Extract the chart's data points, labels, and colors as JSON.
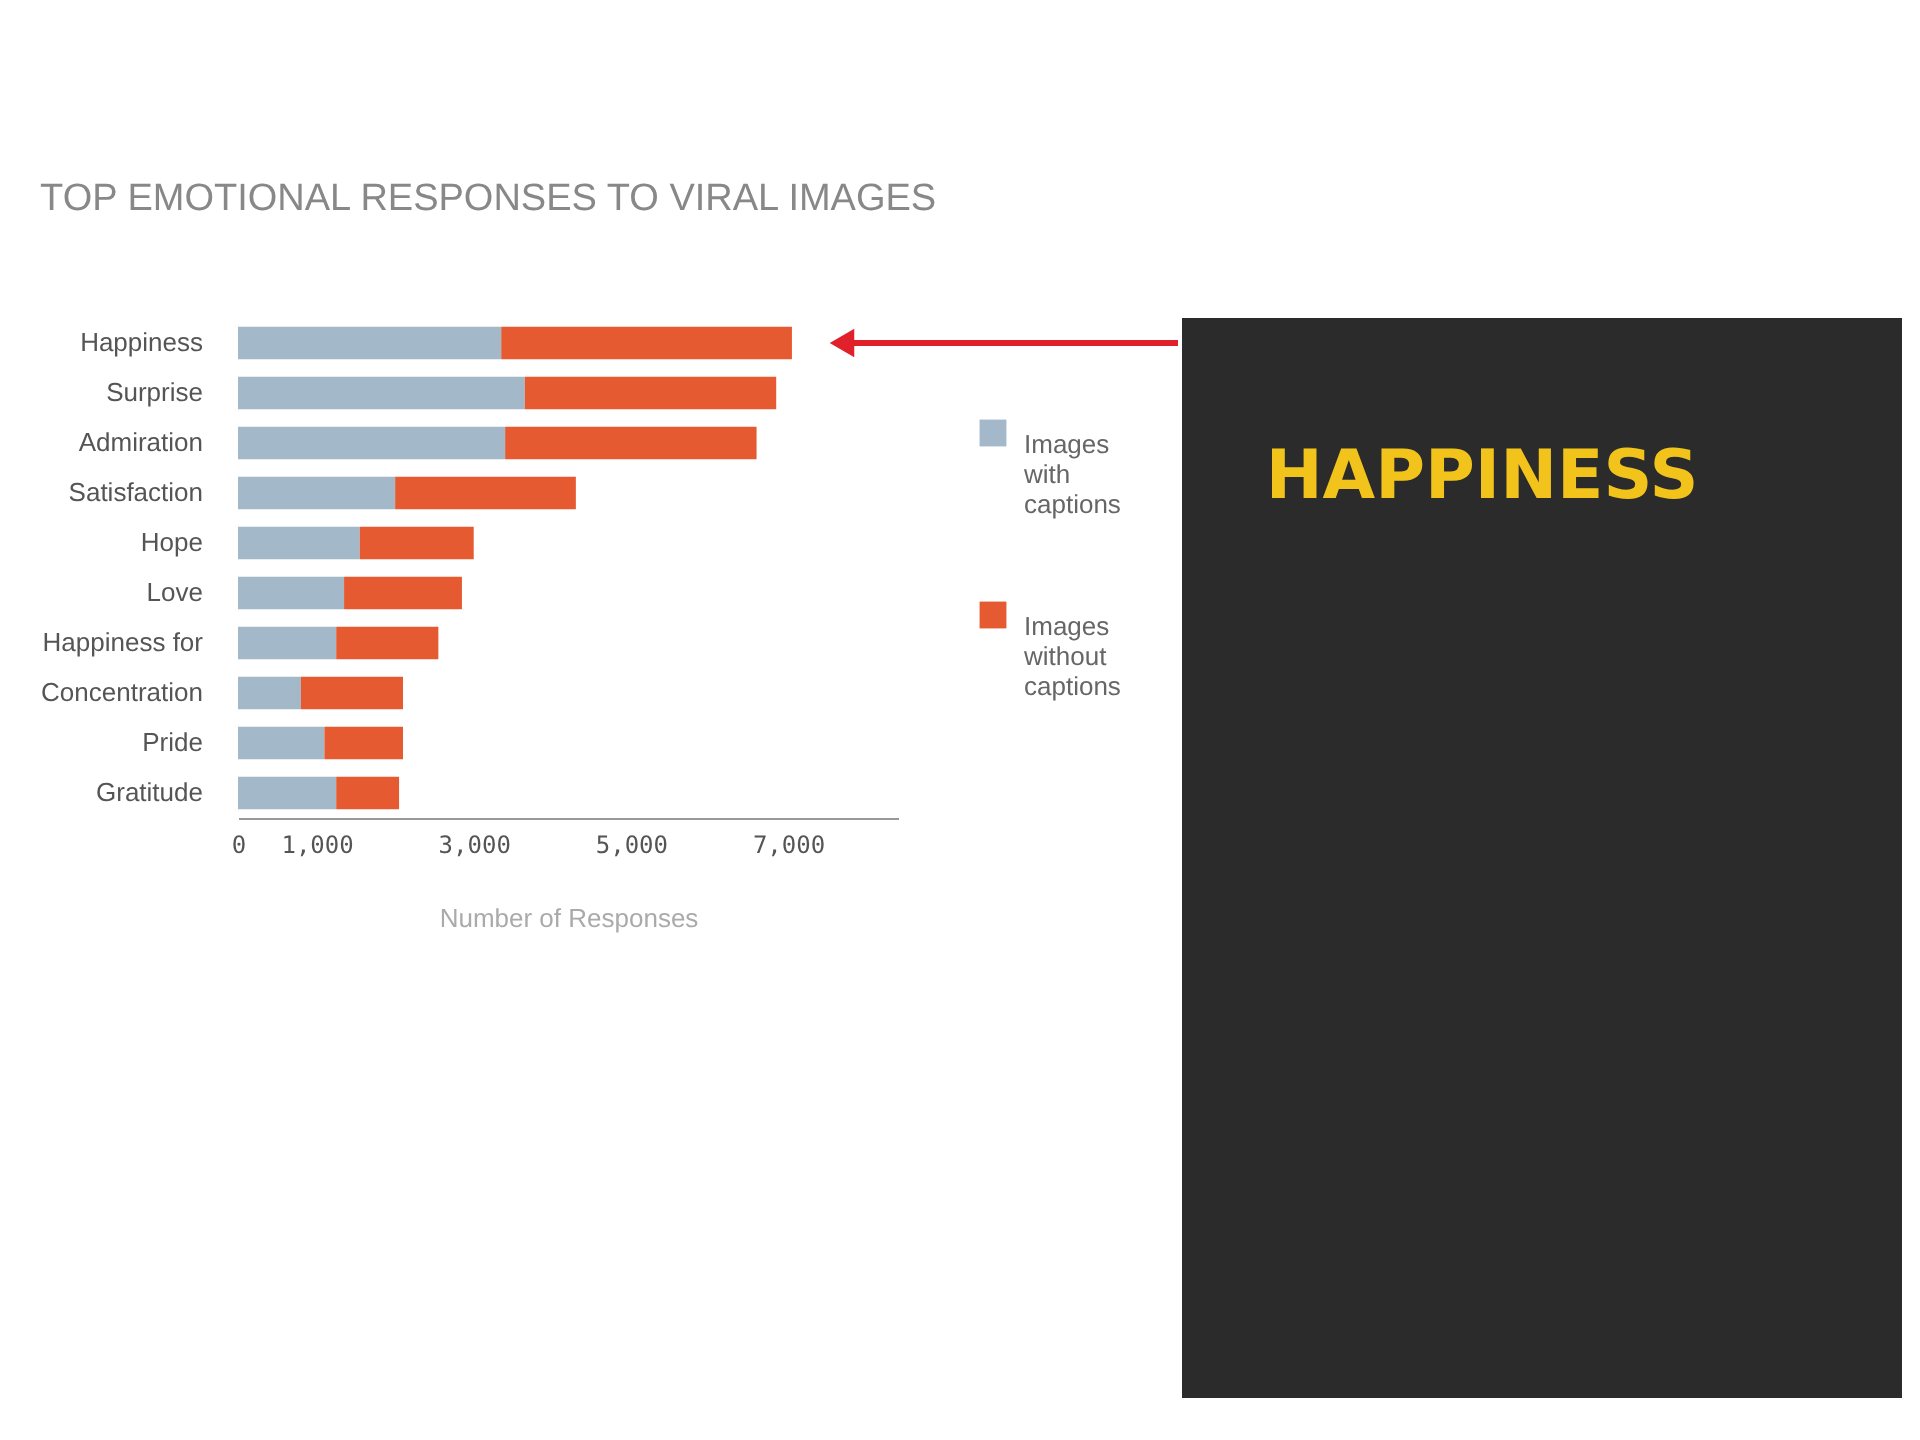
{
  "chart_data": {
    "type": "bar",
    "orientation": "horizontal",
    "stacked": true,
    "title": "TOP EMOTIONAL RESPONSES TO VIRAL IMAGES",
    "xlabel": "Number of Responses",
    "categories": [
      "Happiness",
      "Surprise",
      "Admiration",
      "Satisfaction",
      "Hope",
      "Love",
      "Happiness for",
      "Concentration",
      "Pride",
      "Gratitude"
    ],
    "series": [
      {
        "name": "Images with captions",
        "color": "#a3b8c8",
        "values": [
          3350,
          3650,
          3400,
          2000,
          1550,
          1350,
          1250,
          800,
          1100,
          1250
        ]
      },
      {
        "name": "Images without captions",
        "color": "#e55a30",
        "values": [
          3700,
          3200,
          3200,
          2300,
          1450,
          1500,
          1300,
          1300,
          1000,
          800
        ]
      }
    ],
    "xlim": [
      0,
      8400
    ],
    "xticks": [
      0,
      {
        "value": 1000,
        "label": "1,000"
      },
      {
        "value": 3000,
        "label": "3,000"
      },
      {
        "value": 5000,
        "label": "5,000"
      },
      {
        "value": 7000,
        "label": "7,000"
      }
    ],
    "grid": false,
    "legend": "right",
    "annotations": [
      "HAPPINESS"
    ]
  }
}
